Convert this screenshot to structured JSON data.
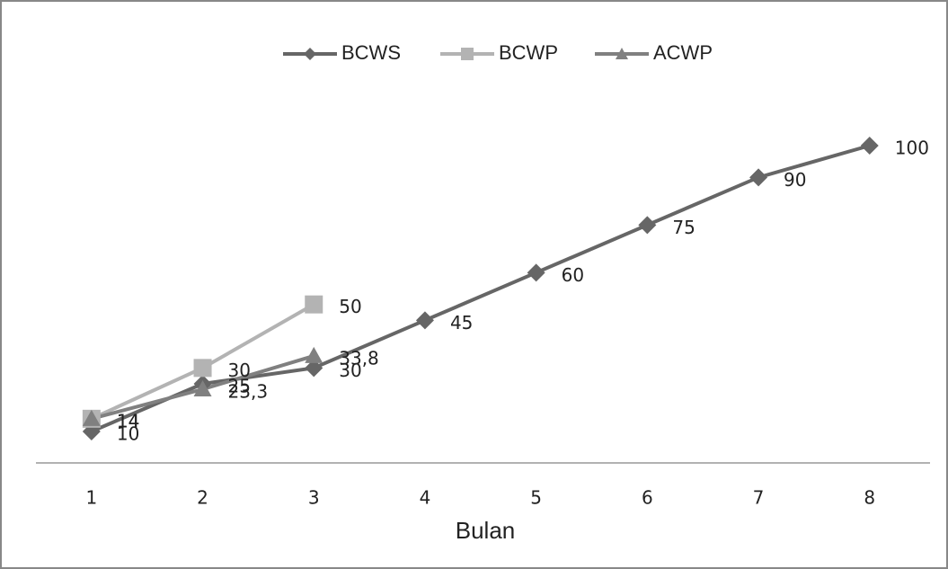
{
  "chart_data": {
    "type": "line",
    "x_label": "Bulan",
    "categories": [
      "1",
      "2",
      "3",
      "4",
      "5",
      "6",
      "7",
      "8"
    ],
    "series": [
      {
        "name": "BCWS",
        "color": "#666666",
        "marker": "diamond",
        "values": [
          10,
          25,
          30,
          45,
          60,
          75,
          90,
          100
        ]
      },
      {
        "name": "BCWP",
        "color": "#b3b3b3",
        "marker": "square",
        "values": [
          14,
          30,
          50,
          null,
          null,
          null,
          null,
          null
        ]
      },
      {
        "name": "ACWP",
        "color": "#808080",
        "marker": "triangle",
        "values": [
          14,
          23.3,
          33.8,
          null,
          null,
          null,
          null,
          null
        ],
        "value_labels": [
          "14",
          "23,3",
          "33,8",
          null,
          null,
          null,
          null,
          null
        ]
      }
    ],
    "legend": "top"
  }
}
